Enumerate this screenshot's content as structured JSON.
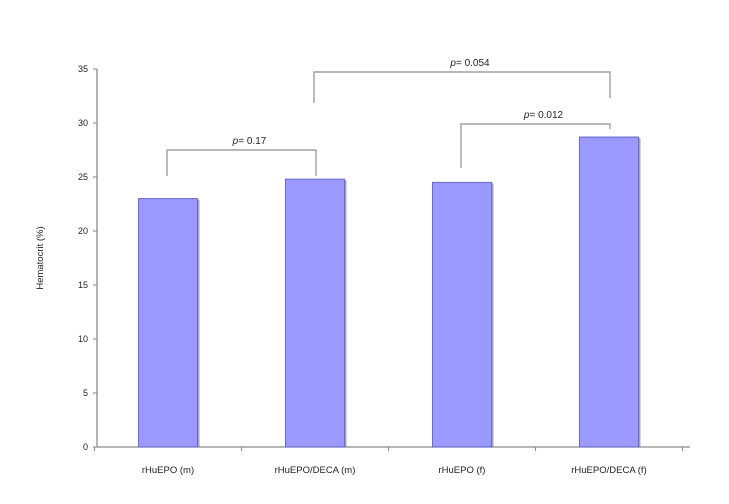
{
  "chart_data": {
    "type": "bar",
    "title": "",
    "xlabel": "",
    "ylabel": "Hematocrit (%)",
    "ylim": [
      0,
      35
    ],
    "yticks": [
      0,
      5,
      10,
      15,
      20,
      25,
      30,
      35
    ],
    "grid": false,
    "legend": "none",
    "categories": [
      "rHuEPO (m)",
      "rHuEPO/DECA (m)",
      "rHuEPO (f)",
      "rHuEPO/DECA (f)"
    ],
    "values": [
      23.0,
      24.8,
      24.5,
      28.7
    ],
    "annotations": [
      {
        "from": 0,
        "to": 1,
        "p_symbol": "p",
        "text": "= 0.17"
      },
      {
        "from": 2,
        "to": 3,
        "p_symbol": "p",
        "text": "= 0.012"
      },
      {
        "from": 1,
        "to": 3,
        "p_symbol": "p",
        "text": "= 0.054"
      }
    ],
    "colors": {
      "bar_fill": "#9999ff",
      "bar_edge": "#6a6acc",
      "bar_shadow": "#5555aa",
      "axis": "#8c8c8c",
      "bracket": "#a0a0a0"
    }
  }
}
